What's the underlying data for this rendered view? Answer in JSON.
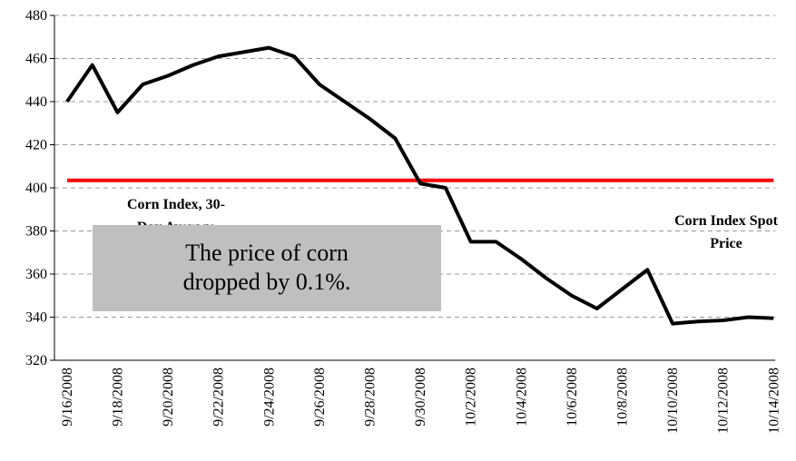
{
  "chart_data": {
    "type": "line",
    "categories": [
      "9/16/2008",
      null,
      "9/18/2008",
      null,
      "9/20/2008",
      null,
      "9/22/2008",
      null,
      "9/24/2008",
      null,
      "9/26/2008",
      null,
      "9/28/2008",
      null,
      "9/30/2008",
      null,
      "10/2/2008",
      null,
      "10/4/2008",
      null,
      "10/6/2008",
      null,
      "10/8/2008",
      null,
      "10/10/2008",
      null,
      "10/12/2008",
      null,
      "10/14/2008"
    ],
    "series": [
      {
        "name": "Corn Index Spot Price",
        "color": "#000000",
        "values": [
          440,
          457,
          435,
          448,
          452,
          457,
          461,
          463,
          465,
          461,
          448,
          440,
          432,
          423,
          402,
          400,
          375,
          375,
          367,
          358,
          350,
          344,
          353,
          362,
          337,
          338,
          338.5,
          340,
          339.5
        ]
      },
      {
        "name": "Corn Index, 30-Day Average",
        "color": "#ff0000",
        "values": [
          403.5,
          403.5,
          403.5,
          403.5,
          403.5,
          403.5,
          403.5,
          403.5,
          403.5,
          403.5,
          403.5,
          403.5,
          403.5,
          403.5,
          403.5,
          403.5,
          403.5,
          403.5,
          403.5,
          403.5,
          403.5,
          403.5,
          403.5,
          403.5,
          403.5,
          403.5,
          403.5,
          403.5,
          403.5
        ]
      }
    ],
    "annotation": "The price of corn dropped by 0.1%.",
    "ylim": [
      320,
      480
    ],
    "yticks": [
      320,
      340,
      360,
      380,
      400,
      420,
      440,
      460,
      480
    ],
    "grid": true
  }
}
